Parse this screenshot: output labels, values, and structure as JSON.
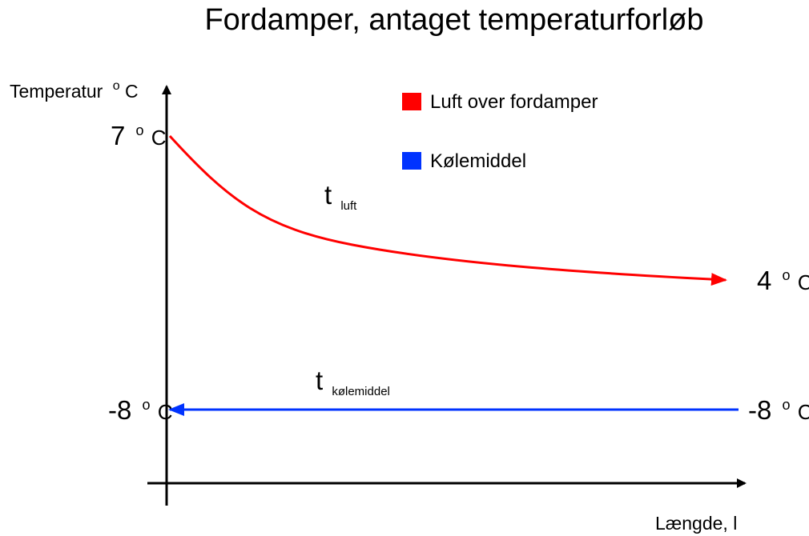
{
  "title": "Fordamper, antaget temperaturforløb",
  "axes": {
    "y_label": "Temperatur",
    "y_unit_deg": "o",
    "y_unit_c": "C",
    "x_label": "Længde, l"
  },
  "legend": [
    {
      "label": "Luft over fordamper",
      "color": "#ff0000"
    },
    {
      "label": "Kølemiddel",
      "color": "#0033ff"
    }
  ],
  "labels": {
    "start_air": {
      "value": "7",
      "deg": "o",
      "unit": "C"
    },
    "end_air": {
      "value": "4",
      "deg": "o",
      "unit": "C"
    },
    "left_ref": {
      "value": "-8",
      "deg": "o",
      "unit": "C"
    },
    "right_ref": {
      "value": "-8",
      "deg": "o",
      "unit": "C"
    },
    "t_air": {
      "main": "t",
      "sub": "luft"
    },
    "t_ref": {
      "main": "t",
      "sub": "kølemiddel"
    }
  },
  "chart_data": {
    "type": "line",
    "series": [
      {
        "name": "Luft over fordamper",
        "start_value": 7,
        "end_value": 4,
        "shape": "exponential-decay",
        "direction": "increasing-length",
        "color": "#ff0000"
      },
      {
        "name": "Kølemiddel",
        "start_value": -8,
        "end_value": -8,
        "shape": "constant",
        "direction": "decreasing-length",
        "color": "#0033ff"
      }
    ]
  }
}
